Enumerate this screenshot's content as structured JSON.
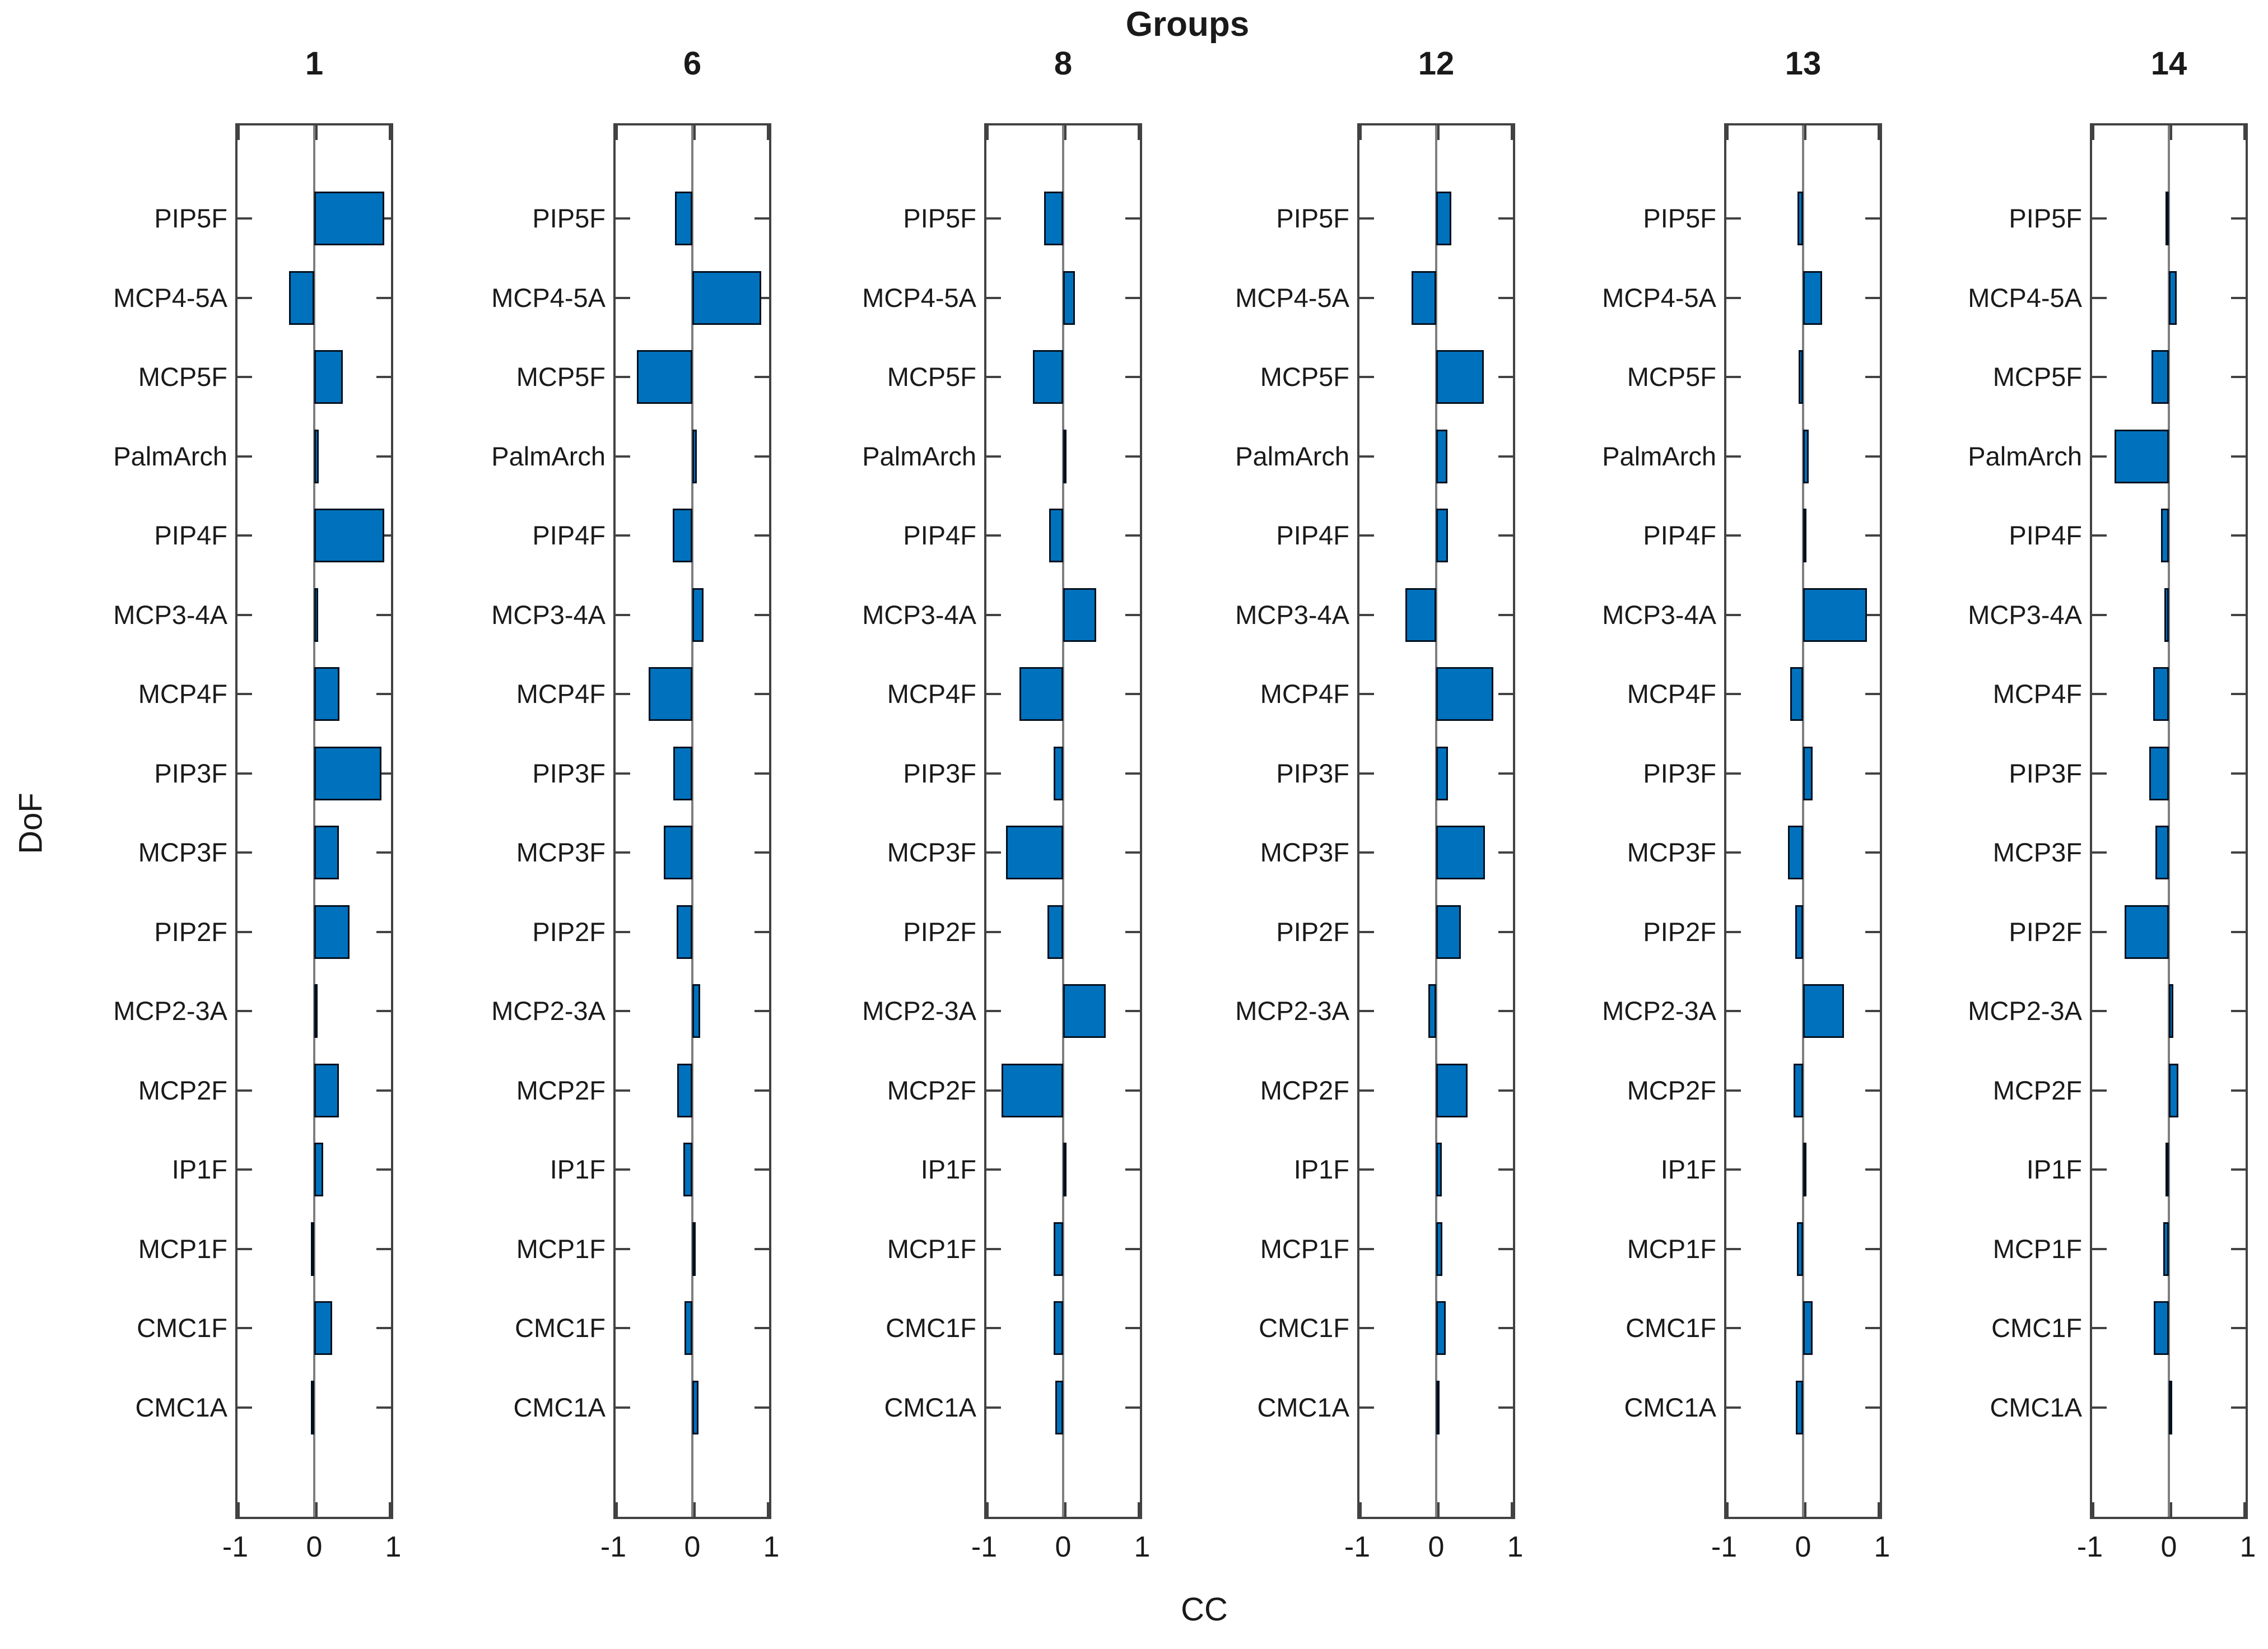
{
  "figure": {
    "title": "Groups",
    "xlabel": "CC",
    "ylabel": "DoF",
    "xtick_labels": [
      "-1",
      "0",
      "1"
    ]
  },
  "colors": {
    "bar_fill": "#0072BD",
    "bar_edge": "#00101f",
    "axis_line": "#424242",
    "zero_line": "#7f7f7f",
    "text": "#1a1a1a"
  },
  "chart_data": {
    "type": "bar",
    "orientation": "horizontal",
    "title": "Groups",
    "xlabel": "CC",
    "ylabel": "DoF",
    "xlim": [
      -1,
      1
    ],
    "xticks": [
      -1,
      0,
      1
    ],
    "grid": false,
    "legend_position": "none",
    "categories": [
      "PIP5F",
      "MCP4-5A",
      "MCP5F",
      "PalmArch",
      "PIP4F",
      "MCP3-4A",
      "MCP4F",
      "PIP3F",
      "MCP3F",
      "PIP2F",
      "MCP2-3A",
      "MCP2F",
      "IP1F",
      "MCP1F",
      "CMC1F",
      "CMC1A"
    ],
    "series": [
      {
        "name": "1",
        "values": [
          0.89,
          -0.32,
          0.36,
          0.06,
          0.89,
          0.05,
          0.32,
          0.85,
          0.31,
          0.45,
          0.03,
          0.31,
          0.11,
          -0.03,
          0.23,
          -0.03
        ]
      },
      {
        "name": "6",
        "values": [
          -0.22,
          0.87,
          -0.7,
          0.06,
          -0.25,
          0.14,
          -0.55,
          -0.24,
          -0.36,
          -0.2,
          0.1,
          -0.19,
          -0.11,
          0.02,
          -0.1,
          0.08
        ]
      },
      {
        "name": "8",
        "values": [
          -0.24,
          0.15,
          -0.38,
          0.02,
          -0.18,
          0.42,
          -0.55,
          -0.12,
          -0.72,
          -0.2,
          0.54,
          -0.78,
          0.03,
          -0.12,
          -0.12,
          -0.1
        ]
      },
      {
        "name": "12",
        "values": [
          0.19,
          -0.31,
          0.6,
          0.14,
          0.15,
          -0.39,
          0.72,
          0.15,
          0.62,
          0.31,
          -0.1,
          0.4,
          0.07,
          0.08,
          0.12,
          0.02
        ]
      },
      {
        "name": "13",
        "values": [
          -0.07,
          0.24,
          -0.06,
          0.07,
          0.04,
          0.81,
          -0.16,
          0.12,
          -0.19,
          -0.1,
          0.52,
          -0.12,
          0.04,
          -0.08,
          0.12,
          -0.09
        ]
      },
      {
        "name": "14",
        "values": [
          -0.02,
          0.1,
          -0.22,
          -0.69,
          -0.1,
          -0.06,
          -0.2,
          -0.25,
          -0.17,
          -0.56,
          0.06,
          0.12,
          -0.03,
          -0.07,
          -0.19,
          0.03
        ]
      }
    ]
  }
}
